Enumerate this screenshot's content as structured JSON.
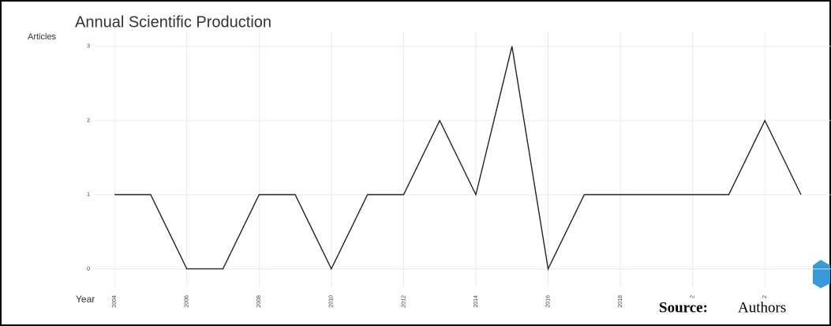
{
  "chart_data": {
    "type": "line",
    "title": "Annual Scientific Production",
    "y_label": "Articles",
    "x_label": "Year",
    "source_label": "Source:",
    "source_text": "Authors",
    "x": [
      2004,
      2005,
      2006,
      2007,
      2008,
      2009,
      2010,
      2011,
      2012,
      2013,
      2014,
      2015,
      2016,
      2017,
      2018,
      2019,
      2020,
      2021,
      2022,
      2023
    ],
    "series": [
      {
        "name": "Articles",
        "color": "#222222",
        "values": [
          1,
          1,
          0,
          0,
          1,
          1,
          0,
          1,
          1,
          2,
          1,
          3,
          0,
          1,
          1,
          1,
          1,
          1,
          2,
          1
        ]
      }
    ],
    "xlim": [
      2003.45,
      2023.83
    ],
    "xticks": [
      2004,
      2006,
      2008,
      2010,
      2012,
      2014,
      2016,
      2018,
      {
        "value": 2020,
        "label": "2"
      },
      {
        "value": 2022,
        "label": "2"
      }
    ],
    "ylim": [
      -0.25,
      3.2
    ],
    "yticks": [
      0,
      1,
      2,
      3
    ],
    "grid": true
  }
}
